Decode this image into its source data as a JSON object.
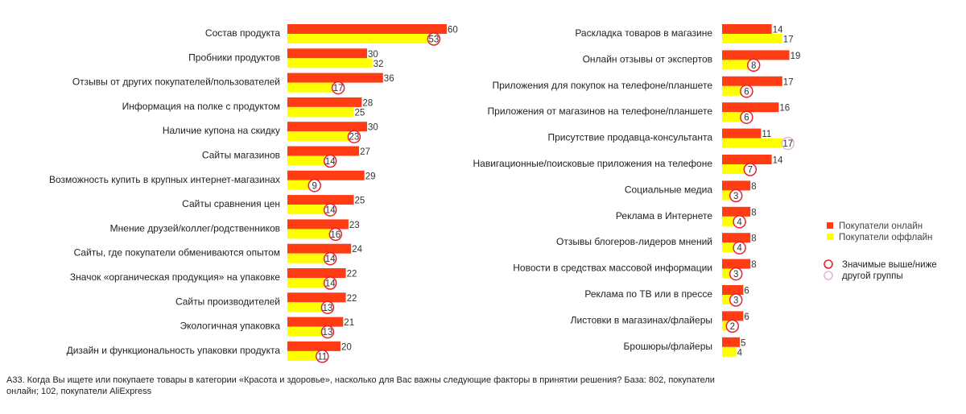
{
  "chart_data": [
    {
      "type": "bar",
      "orientation": "horizontal",
      "categories": [
        "Состав продукта",
        "Пробники продуктов",
        "Отзывы от других покупателей/пользователей",
        "Информация на полке с продуктом",
        "Наличие купона на скидку",
        "Сайты магазинов",
        "Возможность купить в крупных интернет-магазинах",
        "Сайты сравнения цен",
        "Мнение друзей/коллег/родственников",
        "Сайты, где покупатели обмениваются опытом",
        "Значок «органическая продукция» на упаковке",
        "Сайты производителей",
        "Экологичная упаковка",
        "Дизайн и функциональность упаковки продукта"
      ],
      "series": [
        {
          "name": "Покупатели онлайн",
          "color": "#ff3c14",
          "values": [
            60,
            30,
            36,
            28,
            30,
            27,
            29,
            25,
            23,
            24,
            22,
            22,
            21,
            20
          ]
        },
        {
          "name": "Покупатели оффлайн",
          "color": "#ffff00",
          "values": [
            53,
            32,
            17,
            25,
            23,
            14,
            9,
            14,
            16,
            14,
            14,
            13,
            13,
            11
          ],
          "significance": [
            "red",
            null,
            "red",
            null,
            "red",
            "red",
            "red",
            "red",
            "red",
            "red",
            "red",
            "red",
            "red",
            "red"
          ]
        }
      ],
      "xlim": [
        0,
        65
      ]
    },
    {
      "type": "bar",
      "orientation": "horizontal",
      "categories": [
        "Раскладка товаров в магазине",
        "Онлайн отзывы от экспертов",
        "Приложения для покупок на телефоне/планшете",
        "Приложения от магазинов на телефоне/планшете",
        "Присутствие продавца-консультанта",
        "Навигационные/поисковые приложения на телефоне",
        "Социальные медиа",
        "Реклама в Интернете",
        "Отзывы блогеров-лидеров мнений",
        "Новости в средствах массовой информации",
        "Реклама по ТВ или в прессе",
        "Листовки в магазинах/флайеры",
        "Брошюры/флайеры"
      ],
      "series": [
        {
          "name": "Покупатели онлайн",
          "color": "#ff3c14",
          "values": [
            14,
            19,
            17,
            16,
            11,
            14,
            8,
            8,
            8,
            8,
            6,
            6,
            5
          ]
        },
        {
          "name": "Покупатели оффлайн",
          "color": "#ffff00",
          "values": [
            17,
            8,
            6,
            6,
            17,
            7,
            3,
            4,
            4,
            3,
            3,
            2,
            4
          ],
          "significance": [
            null,
            "red",
            "red",
            "red",
            "pink",
            "red",
            "red",
            "red",
            "red",
            "red",
            "red",
            "red",
            null
          ]
        }
      ],
      "xlim": [
        0,
        20
      ]
    }
  ],
  "legend": {
    "online": "Покупатели онлайн",
    "offline": "Покупатели оффлайн",
    "sig_line1": "Значимые выше/ниже",
    "sig_line2": "другой группы",
    "sig_colors": {
      "red": "#e8202a",
      "pink": "#e4b8d4"
    }
  },
  "footnote": "А33. Когда Вы ищете или покупаете товары в категории «Красота и здоровье», насколько для Вас важны следующие факторы в принятии решения? База: 802, покупатели онлайн; 102, покупатели AliExpress"
}
